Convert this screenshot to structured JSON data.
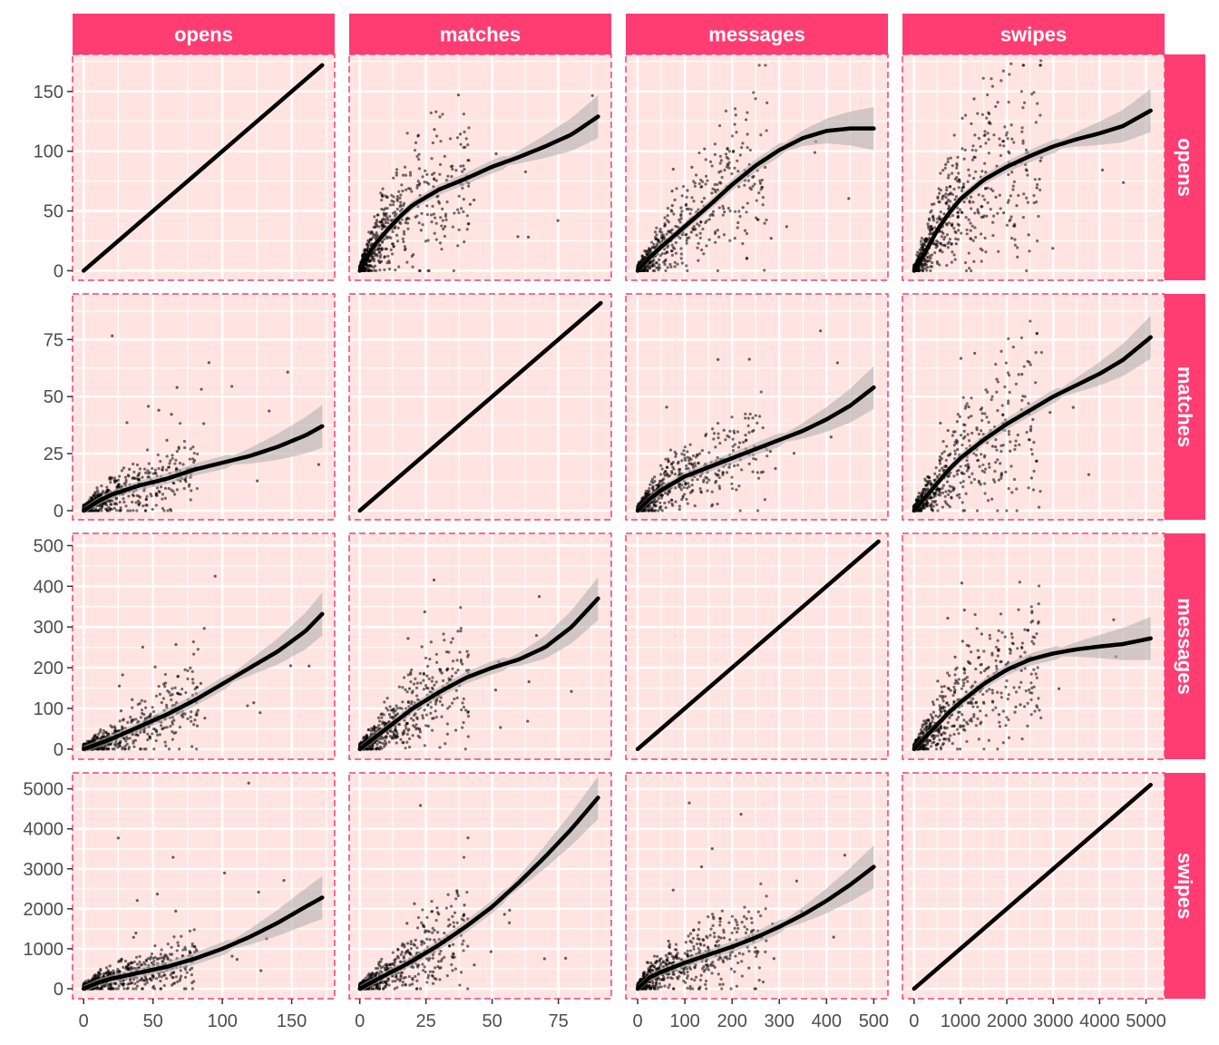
{
  "colors": {
    "panel_background": "#ffe4e1",
    "panel_border": "#e8457a",
    "strip_background": "#ff3d73",
    "strip_text": "#ffffff",
    "grid": "#ffffff",
    "points": "#000000",
    "smooth_line": "#000000",
    "confidence_band": "#b3b3b3"
  },
  "chart_data": {
    "type": "scatter",
    "layout": "scatter-matrix with loess smooth and confidence band",
    "variables": [
      "opens",
      "matches",
      "messages",
      "swipes"
    ],
    "column_strips": [
      "opens",
      "matches",
      "messages",
      "swipes"
    ],
    "row_strips": [
      "opens",
      "matches",
      "messages",
      "swipes"
    ],
    "axes": {
      "opens": {
        "range": [
          -8,
          181
        ],
        "ticks": [
          0,
          50,
          100,
          150
        ]
      },
      "matches": {
        "range": [
          -4,
          95
        ],
        "ticks": [
          0,
          25,
          50,
          75
        ]
      },
      "messages": {
        "range": [
          -25,
          530
        ],
        "ticks": [
          0,
          100,
          200,
          300,
          400,
          500
        ]
      },
      "swipes": {
        "range": [
          -250,
          5400
        ],
        "ticks": [
          0,
          1000,
          2000,
          3000,
          4000,
          5000
        ]
      }
    },
    "x_tick_labels": {
      "opens": [
        "0",
        "50",
        "100",
        "150"
      ],
      "matches": [
        "0",
        "25",
        "50",
        "75"
      ],
      "messages": [
        "0",
        "100",
        "200",
        "300",
        "400",
        "500"
      ],
      "swipes": [
        "0",
        "1000",
        "2000",
        "3000",
        "4000",
        "5000"
      ]
    },
    "y_tick_labels": {
      "opens": [
        "0",
        "50",
        "100",
        "150"
      ],
      "matches": [
        "0",
        "25",
        "50",
        "75"
      ],
      "messages": [
        "0",
        "100",
        "200",
        "300",
        "400",
        "500"
      ],
      "swipes": [
        "0",
        "1000",
        "2000",
        "3000",
        "4000",
        "5000"
      ]
    },
    "smooth_curves": [
      {
        "row": "opens",
        "col": "opens",
        "x": [
          0,
          172
        ],
        "y": [
          0,
          172
        ]
      },
      {
        "row": "opens",
        "col": "matches",
        "x": [
          0,
          5,
          10,
          15,
          20,
          30,
          40,
          50,
          60,
          70,
          80,
          90
        ],
        "y": [
          0,
          20,
          33,
          45,
          55,
          68,
          77,
          87,
          95,
          104,
          114,
          129
        ]
      },
      {
        "row": "opens",
        "col": "messages",
        "x": [
          0,
          25,
          50,
          100,
          150,
          200,
          250,
          300,
          350,
          400,
          450,
          500
        ],
        "y": [
          0,
          11,
          20,
          37,
          54,
          72,
          88,
          101,
          111,
          117,
          119,
          119
        ]
      },
      {
        "row": "opens",
        "col": "swipes",
        "x": [
          0,
          250,
          500,
          750,
          1000,
          1500,
          2000,
          2500,
          3000,
          3500,
          4000,
          4500,
          5100
        ],
        "y": [
          0,
          16,
          34,
          48,
          60,
          76,
          87,
          96,
          104,
          110,
          115,
          121,
          134
        ]
      },
      {
        "row": "matches",
        "col": "opens",
        "x": [
          0,
          10,
          20,
          40,
          60,
          80,
          100,
          120,
          140,
          160,
          172
        ],
        "y": [
          0,
          4,
          7,
          11,
          14,
          18,
          21,
          24,
          28,
          33,
          37
        ]
      },
      {
        "row": "matches",
        "col": "matches",
        "x": [
          0,
          91
        ],
        "y": [
          0,
          91
        ]
      },
      {
        "row": "matches",
        "col": "messages",
        "x": [
          0,
          25,
          50,
          100,
          150,
          200,
          250,
          300,
          350,
          400,
          450,
          500
        ],
        "y": [
          0,
          5,
          9,
          15,
          19,
          23,
          27,
          31,
          35,
          40,
          46,
          54
        ]
      },
      {
        "row": "matches",
        "col": "swipes",
        "x": [
          0,
          250,
          500,
          750,
          1000,
          1500,
          2000,
          2500,
          3000,
          3500,
          4000,
          4500,
          5100
        ],
        "y": [
          0,
          6,
          12,
          18,
          23,
          31,
          38,
          44,
          50,
          55,
          60,
          66,
          76
        ]
      },
      {
        "row": "messages",
        "col": "opens",
        "x": [
          0,
          10,
          20,
          40,
          60,
          80,
          100,
          120,
          140,
          160,
          172
        ],
        "y": [
          0,
          12,
          25,
          55,
          85,
          120,
          160,
          200,
          240,
          290,
          332
        ]
      },
      {
        "row": "messages",
        "col": "matches",
        "x": [
          0,
          5,
          10,
          15,
          20,
          30,
          40,
          50,
          60,
          70,
          80,
          90
        ],
        "y": [
          0,
          25,
          50,
          75,
          100,
          140,
          175,
          200,
          220,
          250,
          300,
          370
        ]
      },
      {
        "row": "messages",
        "col": "messages",
        "x": [
          0,
          510
        ],
        "y": [
          0,
          510
        ]
      },
      {
        "row": "messages",
        "col": "swipes",
        "x": [
          0,
          250,
          500,
          750,
          1000,
          1500,
          2000,
          2500,
          3000,
          3500,
          4000,
          4500,
          5100
        ],
        "y": [
          0,
          30,
          60,
          90,
          115,
          160,
          195,
          220,
          235,
          245,
          252,
          258,
          272
        ]
      },
      {
        "row": "swipes",
        "col": "opens",
        "x": [
          0,
          10,
          20,
          40,
          60,
          80,
          100,
          120,
          140,
          160,
          172
        ],
        "y": [
          0,
          150,
          250,
          400,
          550,
          750,
          1000,
          1300,
          1650,
          2050,
          2280
        ]
      },
      {
        "row": "swipes",
        "col": "matches",
        "x": [
          0,
          5,
          10,
          15,
          20,
          30,
          40,
          50,
          60,
          70,
          80,
          90
        ],
        "y": [
          0,
          180,
          350,
          520,
          700,
          1100,
          1550,
          2050,
          2650,
          3300,
          4000,
          4780
        ]
      },
      {
        "row": "swipes",
        "col": "messages",
        "x": [
          0,
          25,
          50,
          100,
          150,
          200,
          250,
          300,
          350,
          400,
          450,
          500
        ],
        "y": [
          0,
          280,
          420,
          650,
          850,
          1050,
          1280,
          1550,
          1850,
          2200,
          2600,
          3050
        ]
      },
      {
        "row": "swipes",
        "col": "swipes",
        "x": [
          0,
          5100
        ],
        "y": [
          0,
          5100
        ]
      }
    ],
    "outlier_points": {
      "opens": [
        172,
        165,
        160,
        150,
        140,
        130,
        128,
        120,
        110,
        100,
        95,
        90,
        85,
        75,
        70,
        60,
        55,
        50,
        45,
        40
      ],
      "matches": [
        91,
        81,
        77,
        72,
        65,
        64,
        62,
        60,
        52,
        48,
        45,
        42,
        40,
        38,
        35,
        32,
        30,
        28,
        25,
        22
      ],
      "messages": [
        510,
        450,
        420,
        400,
        370,
        355,
        340,
        310,
        295,
        280,
        260,
        240,
        220,
        200,
        180,
        160,
        140,
        130,
        110,
        100
      ],
      "swipes": [
        5150,
        4800,
        4700,
        4350,
        3800,
        3500,
        3000,
        2700,
        2500,
        2400,
        2250,
        2000,
        1800,
        1600,
        1500,
        1350,
        1200,
        1000,
        900,
        800
      ]
    },
    "confidence_band_width_frac": [
      0.015,
      0.03,
      0.08
    ],
    "points_per_panel": 700
  }
}
